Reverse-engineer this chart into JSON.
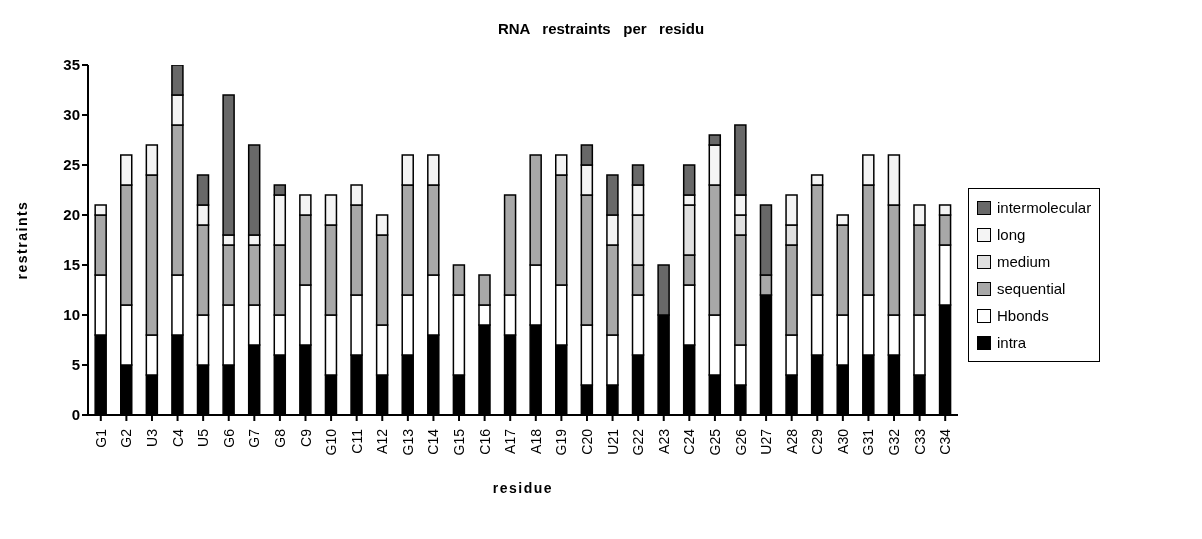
{
  "chart_data": {
    "type": "bar",
    "title": "RNA   restraints   per   residu",
    "xlabel": "residue",
    "ylabel": "restraints",
    "stacked": true,
    "legend": "right",
    "grid": false,
    "categories": [
      "G1",
      "G2",
      "U3",
      "C4",
      "U5",
      "G6",
      "G7",
      "G8",
      "C9",
      "G10",
      "C11",
      "A12",
      "G13",
      "C14",
      "G15",
      "C16",
      "A17",
      "A18",
      "G19",
      "C20",
      "U21",
      "G22",
      "A23",
      "C24",
      "G25",
      "G26",
      "U27",
      "A28",
      "C29",
      "A30",
      "G31",
      "G32",
      "C33",
      "C34"
    ],
    "ylim": [
      0,
      35
    ],
    "yticks": [
      0,
      5,
      10,
      15,
      20,
      25,
      30,
      35
    ],
    "series": [
      {
        "name": "intra",
        "color": "#000000",
        "values": [
          8,
          5,
          4,
          8,
          5,
          5,
          7,
          6,
          7,
          4,
          6,
          4,
          6,
          8,
          4,
          9,
          8,
          9,
          7,
          3,
          3,
          6,
          10,
          7,
          4,
          3,
          12,
          4,
          6,
          5,
          6,
          6,
          4,
          11
        ]
      },
      {
        "name": "Hbonds",
        "color": "#ffffff",
        "values": [
          6,
          6,
          4,
          6,
          5,
          6,
          4,
          4,
          6,
          6,
          6,
          5,
          6,
          6,
          8,
          2,
          4,
          6,
          6,
          6,
          5,
          6,
          0,
          6,
          6,
          4,
          0,
          4,
          6,
          5,
          6,
          4,
          6,
          6
        ]
      },
      {
        "name": "sequential",
        "color": "#a8a8a8",
        "values": [
          6,
          12,
          16,
          15,
          9,
          6,
          6,
          7,
          7,
          9,
          9,
          9,
          11,
          9,
          3,
          3,
          10,
          11,
          11,
          13,
          9,
          3,
          0,
          3,
          13,
          11,
          2,
          9,
          11,
          9,
          11,
          11,
          9,
          3
        ]
      },
      {
        "name": "medium",
        "color": "#e0e0e0",
        "values": [
          0,
          0,
          0,
          0,
          0,
          0,
          0,
          0,
          0,
          0,
          0,
          0,
          0,
          0,
          0,
          0,
          0,
          0,
          0,
          0,
          0,
          5,
          0,
          5,
          0,
          2,
          0,
          2,
          0,
          0,
          0,
          0,
          0,
          0
        ]
      },
      {
        "name": "long",
        "color": "#f4f4f4",
        "values": [
          1,
          3,
          3,
          3,
          2,
          1,
          1,
          5,
          2,
          3,
          2,
          2,
          3,
          3,
          0,
          0,
          0,
          0,
          2,
          3,
          3,
          3,
          0,
          1,
          4,
          2,
          0,
          3,
          1,
          1,
          3,
          5,
          2,
          1
        ]
      },
      {
        "name": "intermolecular",
        "color": "#686868",
        "values": [
          0,
          0,
          0,
          3,
          3,
          14,
          9,
          1,
          0,
          0,
          0,
          0,
          0,
          0,
          0,
          0,
          0,
          0,
          0,
          2,
          4,
          2,
          5,
          3,
          1,
          7,
          7,
          0,
          0,
          0,
          0,
          0,
          0,
          0
        ]
      }
    ]
  }
}
